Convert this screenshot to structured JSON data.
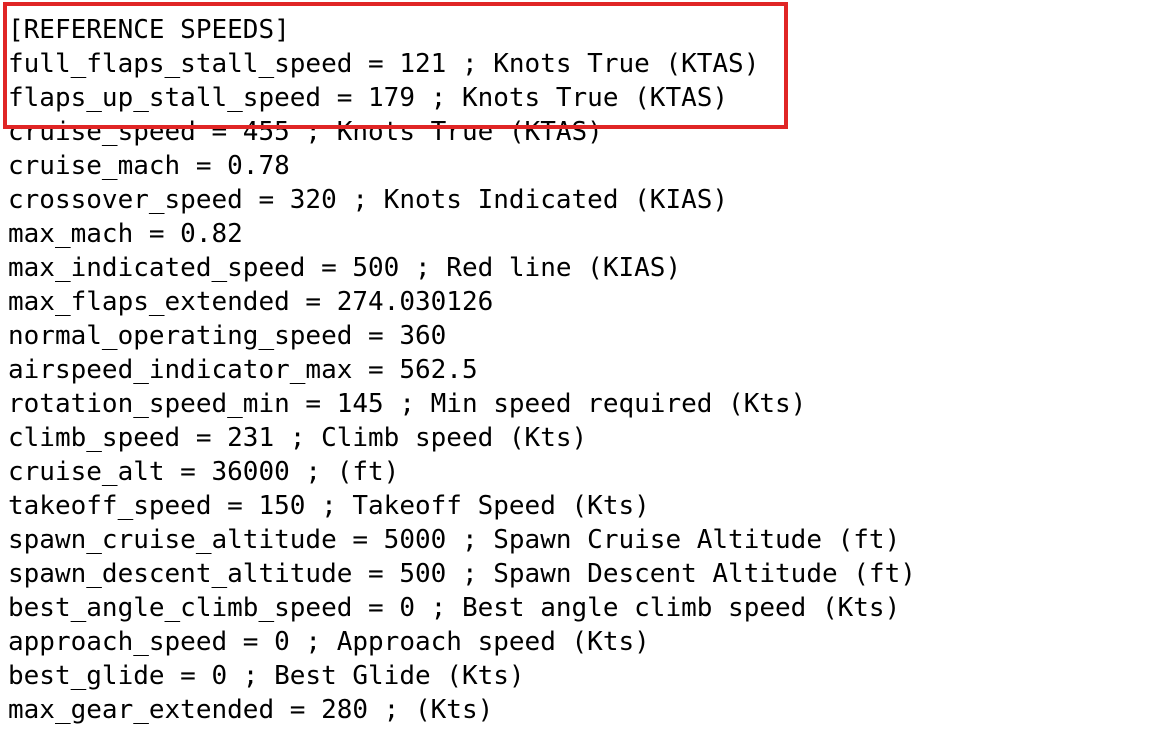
{
  "colors": {
    "background": "#ffffff",
    "text": "#000000",
    "highlight_box": "#e02525"
  },
  "document": {
    "section_header": "[REFERENCE SPEEDS]",
    "lines": [
      "[REFERENCE SPEEDS]",
      "full_flaps_stall_speed = 121 ; Knots True (KTAS)",
      "flaps_up_stall_speed = 179 ; Knots True (KTAS)",
      "cruise_speed = 455 ; Knots True (KTAS)",
      "cruise_mach = 0.78",
      "crossover_speed = 320 ; Knots Indicated (KIAS)",
      "max_mach = 0.82",
      "max_indicated_speed = 500 ; Red line (KIAS)",
      "max_flaps_extended = 274.030126",
      "normal_operating_speed = 360",
      "airspeed_indicator_max = 562.5",
      "rotation_speed_min = 145 ; Min speed required (Kts)",
      "climb_speed = 231 ; Climb speed (Kts)",
      "cruise_alt = 36000 ; (ft)",
      "takeoff_speed = 150 ; Takeoff Speed (Kts)",
      "spawn_cruise_altitude = 5000 ; Spawn Cruise Altitude (ft)",
      "spawn_descent_altitude = 500 ; Spawn Descent Altitude (ft)",
      "best_angle_climb_speed = 0 ; Best angle climb speed (Kts)",
      "approach_speed = 0 ; Approach speed (Kts)",
      "best_glide = 0 ; Best Glide (Kts)",
      "max_gear_extended = 280 ; (Kts)"
    ],
    "entries": [
      {
        "key": "full_flaps_stall_speed",
        "value": "121",
        "comment": "Knots True (KTAS)"
      },
      {
        "key": "flaps_up_stall_speed",
        "value": "179",
        "comment": "Knots True (KTAS)"
      },
      {
        "key": "cruise_speed",
        "value": "455",
        "comment": "Knots True (KTAS)"
      },
      {
        "key": "cruise_mach",
        "value": "0.78",
        "comment": ""
      },
      {
        "key": "crossover_speed",
        "value": "320",
        "comment": "Knots Indicated (KIAS)"
      },
      {
        "key": "max_mach",
        "value": "0.82",
        "comment": ""
      },
      {
        "key": "max_indicated_speed",
        "value": "500",
        "comment": "Red line (KIAS)"
      },
      {
        "key": "max_flaps_extended",
        "value": "274.030126",
        "comment": ""
      },
      {
        "key": "normal_operating_speed",
        "value": "360",
        "comment": ""
      },
      {
        "key": "airspeed_indicator_max",
        "value": "562.5",
        "comment": ""
      },
      {
        "key": "rotation_speed_min",
        "value": "145",
        "comment": "Min speed required (Kts)"
      },
      {
        "key": "climb_speed",
        "value": "231",
        "comment": "Climb speed (Kts)"
      },
      {
        "key": "cruise_alt",
        "value": "36000",
        "comment": "(ft)"
      },
      {
        "key": "takeoff_speed",
        "value": "150",
        "comment": "Takeoff Speed (Kts)"
      },
      {
        "key": "spawn_cruise_altitude",
        "value": "5000",
        "comment": "Spawn Cruise Altitude (ft)"
      },
      {
        "key": "spawn_descent_altitude",
        "value": "500",
        "comment": "Spawn Descent Altitude (ft)"
      },
      {
        "key": "best_angle_climb_speed",
        "value": "0",
        "comment": "Best angle climb speed (Kts)"
      },
      {
        "key": "approach_speed",
        "value": "0",
        "comment": "Approach speed (Kts)"
      },
      {
        "key": "best_glide",
        "value": "0",
        "comment": "Best Glide (Kts)"
      },
      {
        "key": "max_gear_extended",
        "value": "280",
        "comment": "(Kts)"
      }
    ]
  },
  "annotation": {
    "type": "highlight-rectangle",
    "color": "#e02525",
    "covers": [
      "[REFERENCE SPEEDS]",
      "full_flaps_stall_speed",
      "flaps_up_stall_speed"
    ]
  }
}
